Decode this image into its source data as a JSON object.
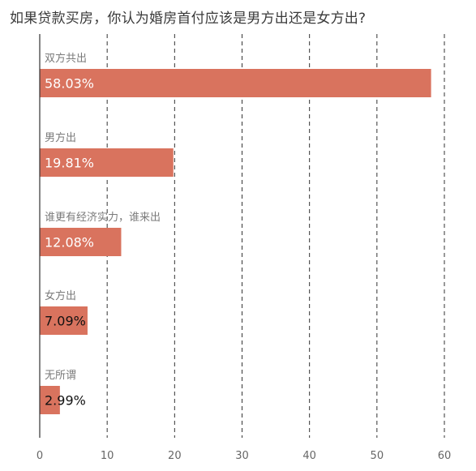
{
  "chart_data": {
    "type": "bar",
    "orientation": "horizontal",
    "title": "如果贷款买房，你认为婚房首付应该是男方出还是女方出?",
    "categories": [
      "双方共出",
      "男方出",
      "谁更有经济实力，谁来出",
      "女方出",
      "无所谓"
    ],
    "values": [
      58.03,
      19.81,
      12.08,
      7.09,
      2.99
    ],
    "value_labels": [
      "58.03%",
      "19.81%",
      "12.08%",
      "7.09%",
      "2.99%"
    ],
    "xlim": [
      0,
      60
    ],
    "xticks": [
      0,
      10,
      20,
      30,
      40,
      50,
      60
    ],
    "grid": true,
    "colors": {
      "bar": "#d9735e",
      "grid": "#333333",
      "axis": "#333333"
    }
  }
}
